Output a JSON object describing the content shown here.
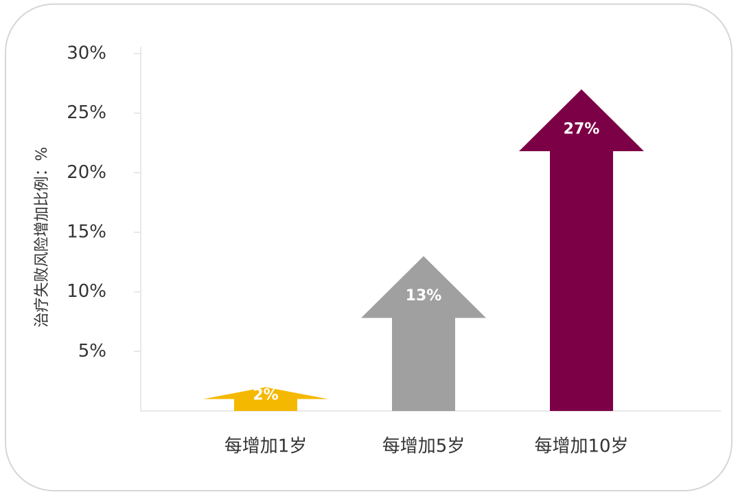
{
  "chart_data": {
    "type": "bar",
    "y_label": "治疗失败风险增加比例：%",
    "categories": [
      "每增加1岁",
      "每增加5岁",
      "每增加10岁"
    ],
    "values": [
      2,
      13,
      27
    ],
    "value_labels": [
      "2%",
      "13%",
      "27%"
    ],
    "colors": [
      "#f5b800",
      "#a0a0a0",
      "#7c0046"
    ],
    "ylim": [
      0,
      30
    ],
    "yticks": [
      {
        "value": 5,
        "label": "5%"
      },
      {
        "value": 10,
        "label": "10%"
      },
      {
        "value": 15,
        "label": "15%"
      },
      {
        "value": 20,
        "label": "20%"
      },
      {
        "value": 25,
        "label": "25%"
      },
      {
        "value": 30,
        "label": "30%"
      }
    ],
    "grid": false
  }
}
